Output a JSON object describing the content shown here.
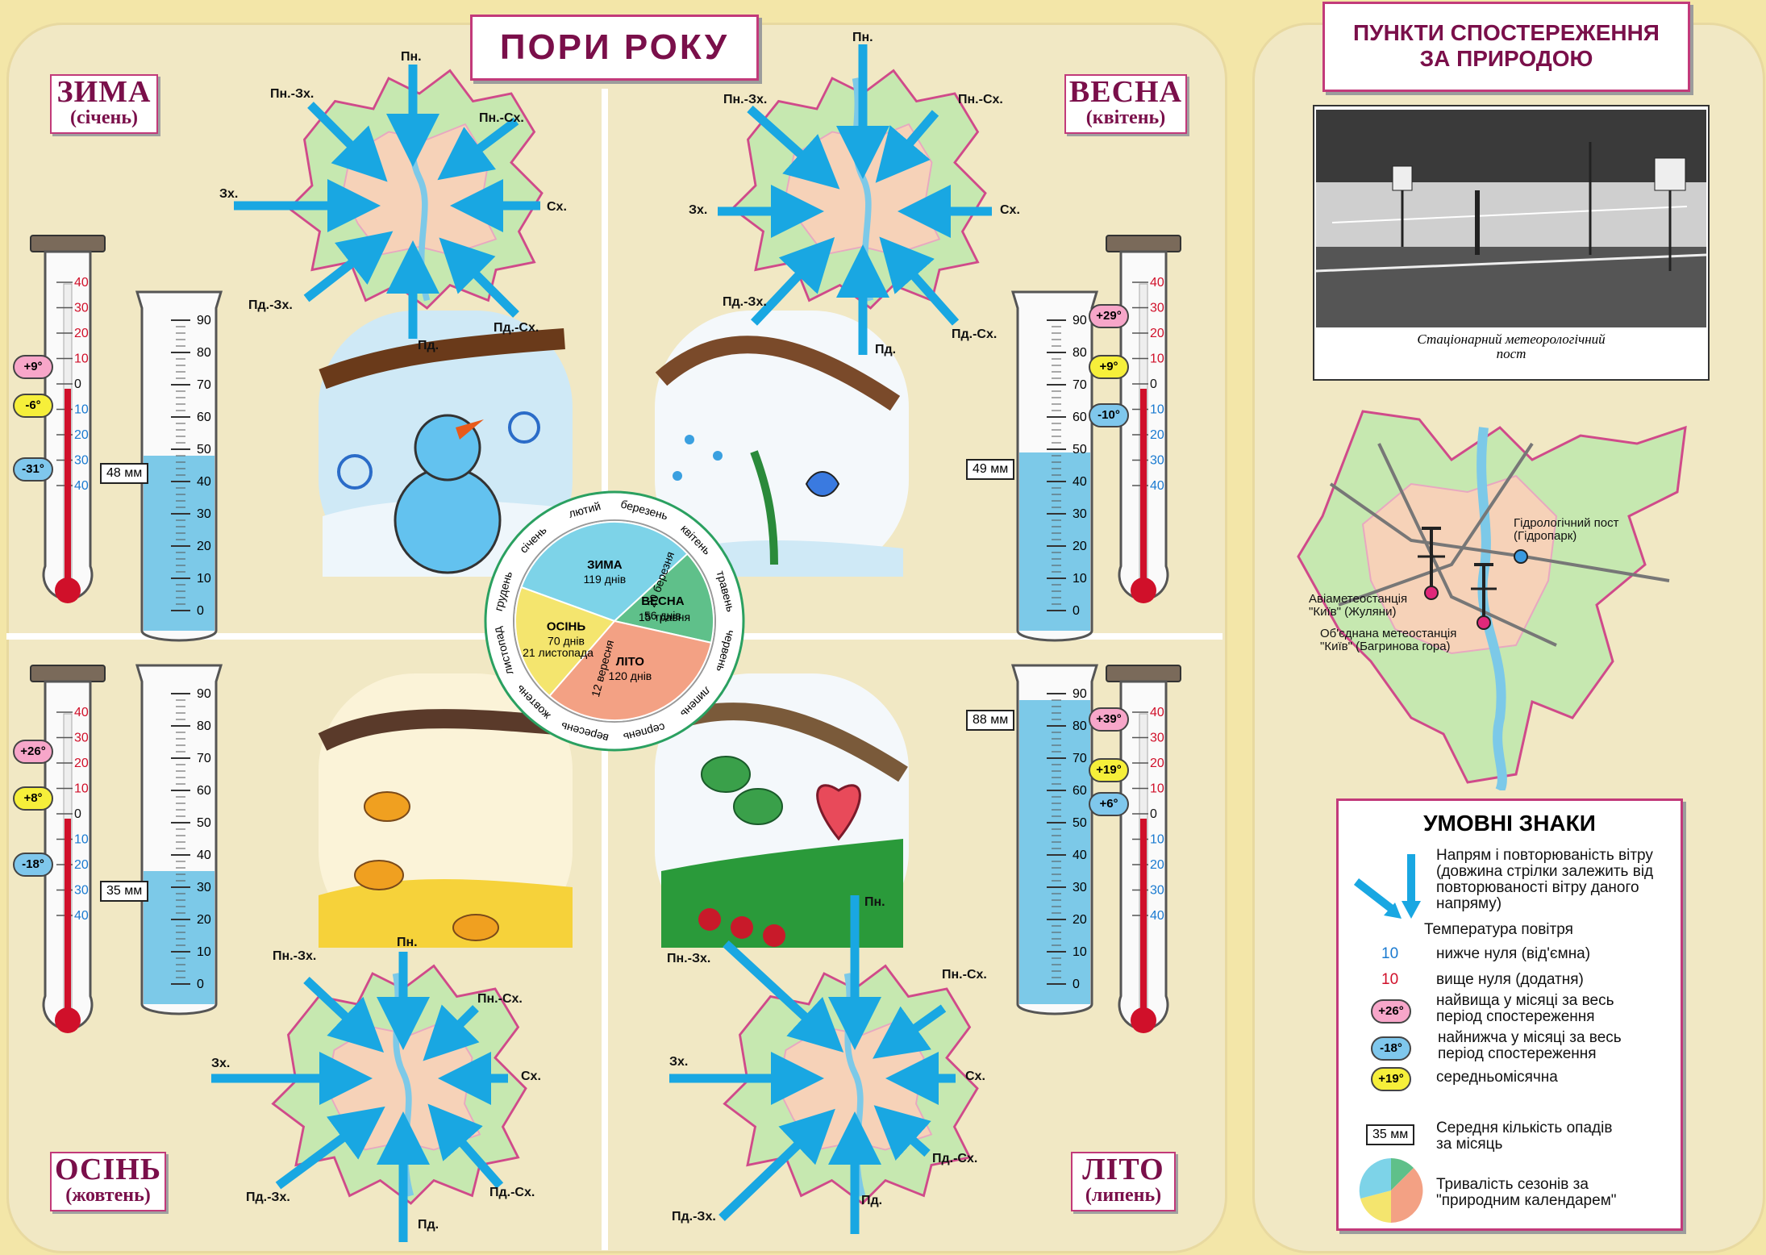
{
  "title": "ПОРИ РОКУ",
  "observation": {
    "title_line1": "ПУНКТИ СПОСТЕРЕЖЕННЯ",
    "title_line2": "ЗА ПРИРОДОЮ",
    "photo_caption_line1": "Стаціонарний метеорологічний",
    "photo_caption_line2": "пост",
    "station1_line1": "Гідрологічний пост",
    "station1_line2": "(Гідропарк)",
    "station2_line1": "Авіаметеостанція",
    "station2_line2": "\"Київ\" (Жуляни)",
    "station3_line1": "Об'єднана метеостанція",
    "station3_line2": "\"Київ\" (Багринова гора)"
  },
  "directions": {
    "n": "Пн.",
    "nw": "Пн.-Зх.",
    "ne": "Пн.-Сх.",
    "w": "Зх.",
    "e": "Сх.",
    "sw": "Пд.-Зх.",
    "se": "Пд.-Сх.",
    "s": "Пд."
  },
  "seasons": {
    "winter": {
      "name": "ЗИМА",
      "month": "(січень)",
      "precip": "48 мм",
      "precip_level": 48,
      "max": "+9°",
      "min": "-31°",
      "mean": "-6°"
    },
    "spring": {
      "name": "ВЕСНА",
      "month": "(квітень)",
      "precip": "49 мм",
      "precip_level": 49,
      "max": "+29°",
      "mean": "+9°",
      "min": "-10°"
    },
    "autumn": {
      "name": "ОСІНЬ",
      "month": "(жовтень)",
      "precip": "35 мм",
      "precip_level": 35,
      "max": "+26°",
      "mean": "+8°",
      "min": "-18°"
    },
    "summer": {
      "name": "ЛІТО",
      "month": "(липень)",
      "precip": "88 мм",
      "precip_level": 88,
      "max": "+39°",
      "mean": "+19°",
      "min": "+6°"
    }
  },
  "cylinder_scale": [
    "90",
    "80",
    "70",
    "60",
    "50",
    "40",
    "30",
    "20",
    "10",
    "0"
  ],
  "thermo_scale": [
    "40",
    "30",
    "20",
    "10",
    "0",
    "10",
    "20",
    "30",
    "40"
  ],
  "calendar": {
    "winter": {
      "name": "ЗИМА",
      "days": "119 днів"
    },
    "spring": {
      "name": "ВЕСНА",
      "days": "56 днів"
    },
    "summer": {
      "name": "ЛІТО",
      "days": "120 днів"
    },
    "autumn": {
      "name": "ОСІНЬ",
      "days": "70 днів"
    },
    "dates": [
      "20 березня",
      "15 травня",
      "12 вересня",
      "21 листопада"
    ],
    "months": [
      "березень",
      "квітень",
      "травень",
      "червень",
      "липень",
      "серпень",
      "вересень",
      "жовтень",
      "листопад",
      "грудень",
      "січень",
      "лютий"
    ]
  },
  "legend": {
    "title": "УМОВНІ ЗНАКИ",
    "wind_line1": "Напрям і повторюваність вітру",
    "wind_line2": "(довжина стрілки залежить від",
    "wind_line3": "повторюваності вітру даного",
    "wind_line4": "напряму)",
    "temp_title": "Температура повітря",
    "below_num": "10",
    "below_text": "нижче нуля (від'ємна)",
    "above_num": "10",
    "above_text": "вище нуля (додатня)",
    "max_sample": "+26°",
    "max_text_line1": "найвища у місяці за весь",
    "max_text_line2": "період спостереження",
    "min_sample": "-18°",
    "min_text_line1": "найнижча у місяці за весь",
    "min_text_line2": "період спостереження",
    "mean_sample": "+19°",
    "mean_text": "середньомісячна",
    "precip_sample": "35 мм",
    "precip_line1": "Середня кількість опадів",
    "precip_line2": "за місяць",
    "pie_line1": "Тривалість сезонів за",
    "pie_line2": "\"природним календарем\""
  },
  "colors": {
    "winter": "#7dd3e8",
    "spring": "#5fc08a",
    "summer": "#f3a184",
    "autumn": "#f4e56e",
    "accent": "#7a0f4a",
    "arrow": "#19a7e2",
    "water": "#7cc9e8"
  }
}
